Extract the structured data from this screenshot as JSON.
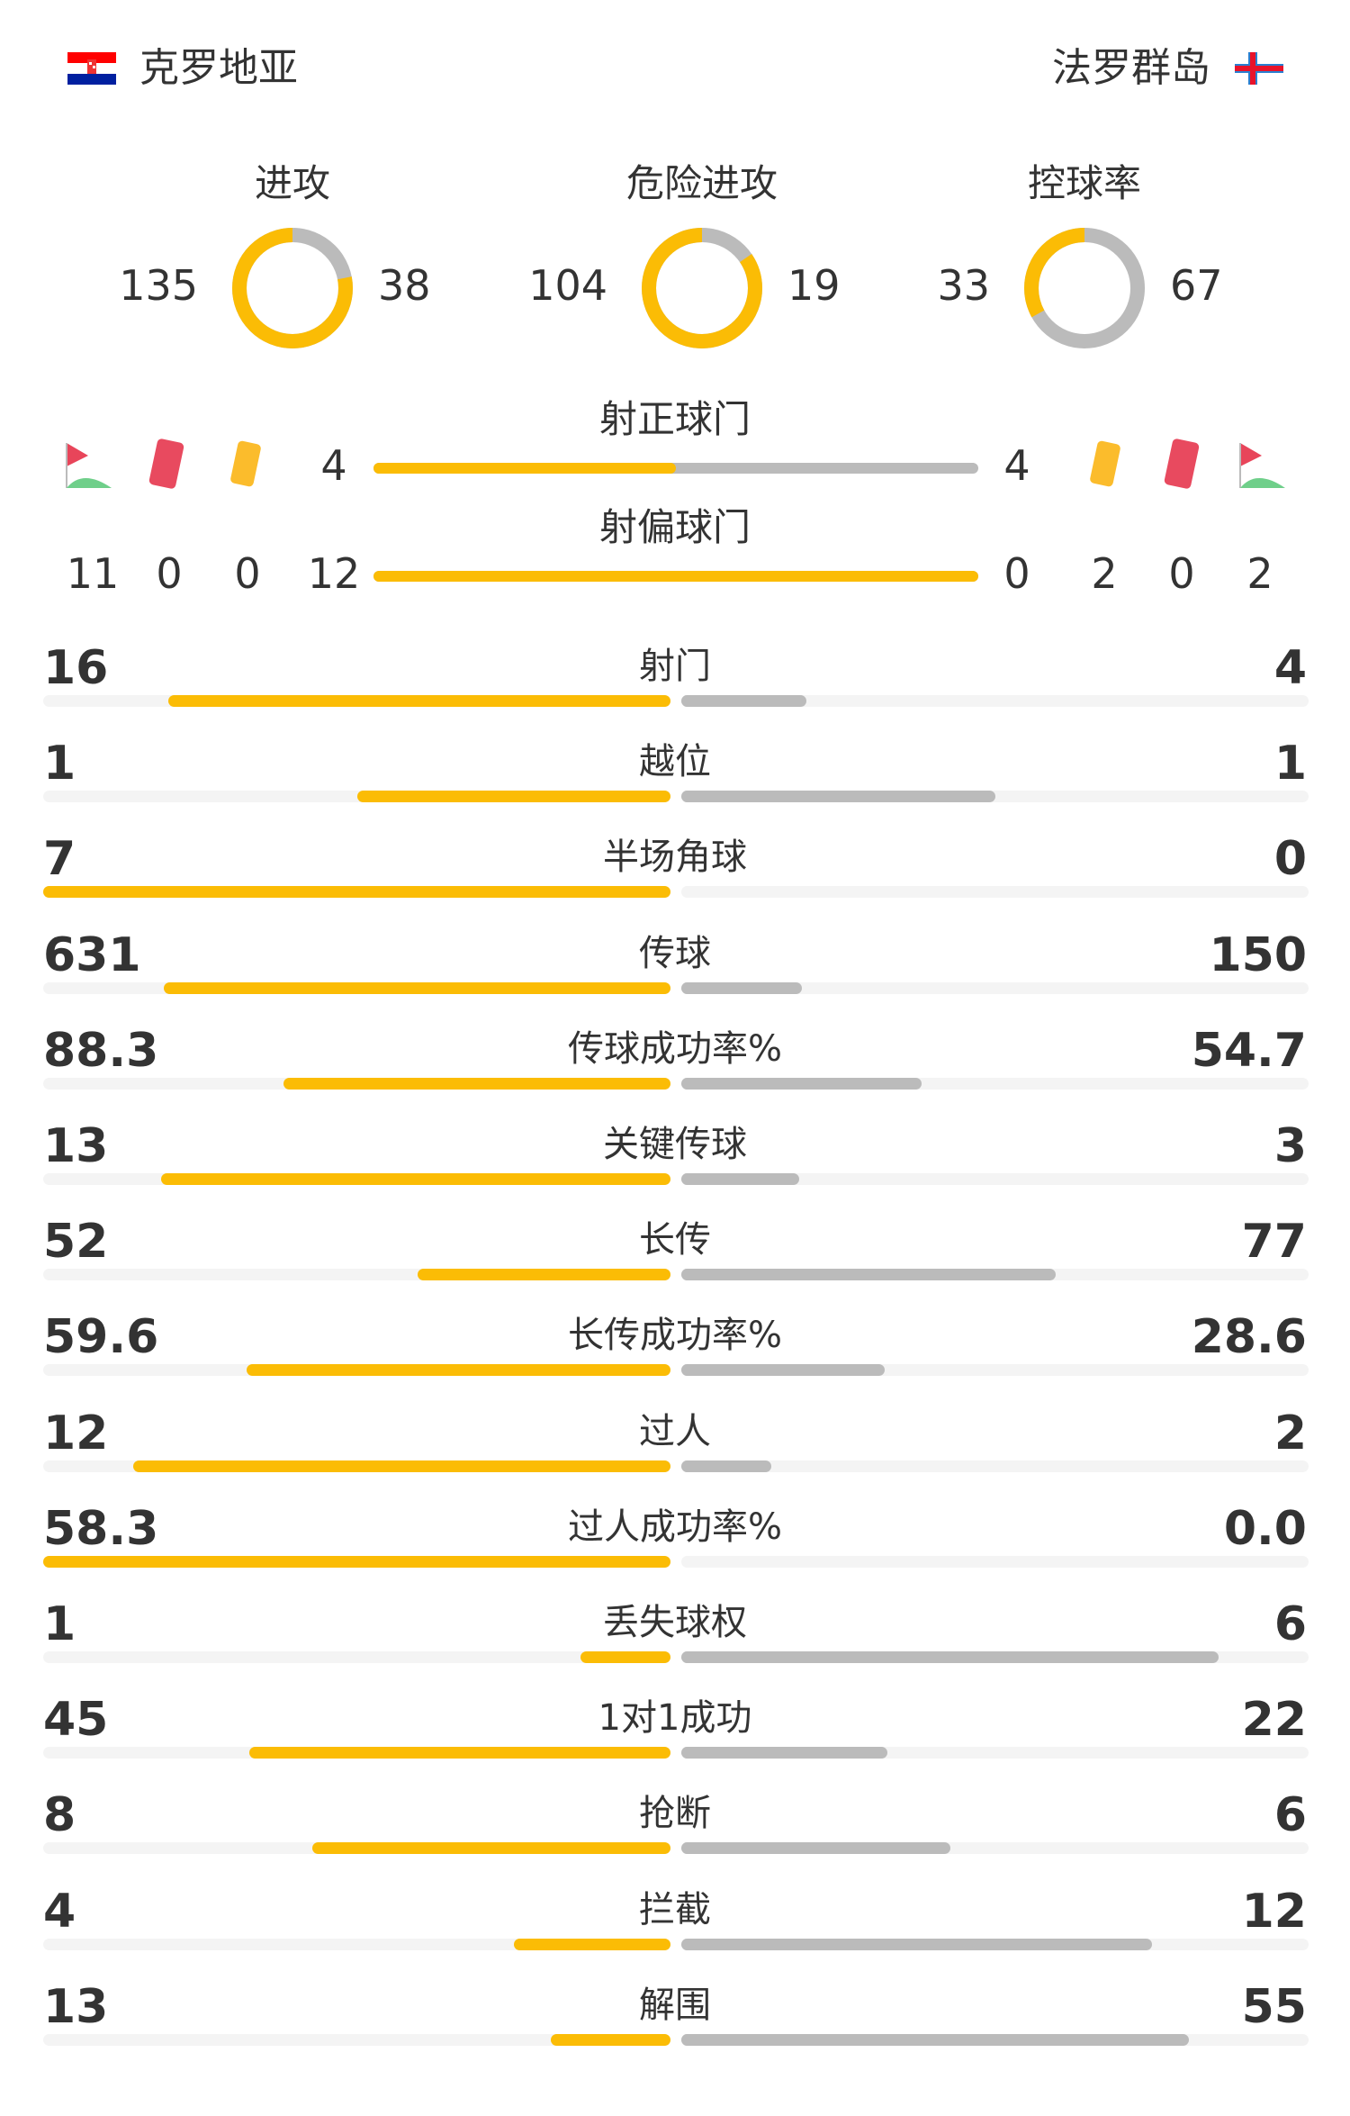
{
  "teams": {
    "home": {
      "name": "克罗地亚",
      "flag": "croatia-flag"
    },
    "away": {
      "name": "法罗群岛",
      "flag": "faroe-islands-flag"
    }
  },
  "colors": {
    "home": "#FBBC05",
    "away": "#BBBBBB",
    "track": "#F4F4F4"
  },
  "donuts": [
    {
      "title": "进攻",
      "home": "135",
      "away": "38"
    },
    {
      "title": "危险进攻",
      "home": "104",
      "away": "19"
    },
    {
      "title": "控球率",
      "home": "33",
      "away": "67"
    }
  ],
  "shots_on_target": {
    "title": "射正球门",
    "home": "4",
    "away": "4"
  },
  "shots_off_target": {
    "title": "射偏球门",
    "home": "12",
    "away": "0"
  },
  "events": {
    "home": {
      "corners": "11",
      "red_cards": "0",
      "yellow_cards": "0"
    },
    "away": {
      "corners": "2",
      "red_cards": "0",
      "yellow_cards": "2"
    }
  },
  "stats": [
    {
      "label": "射门",
      "home": "16",
      "away": "4"
    },
    {
      "label": "越位",
      "home": "1",
      "away": "1"
    },
    {
      "label": "半场角球",
      "home": "7",
      "away": "0"
    },
    {
      "label": "传球",
      "home": "631",
      "away": "150"
    },
    {
      "label": "传球成功率%",
      "home": "88.3",
      "away": "54.7"
    },
    {
      "label": "关键传球",
      "home": "13",
      "away": "3"
    },
    {
      "label": "长传",
      "home": "52",
      "away": "77"
    },
    {
      "label": "长传成功率%",
      "home": "59.6",
      "away": "28.6"
    },
    {
      "label": "过人",
      "home": "12",
      "away": "2"
    },
    {
      "label": "过人成功率%",
      "home": "58.3",
      "away": "0.0"
    },
    {
      "label": "丢失球权",
      "home": "1",
      "away": "6"
    },
    {
      "label": "1对1成功",
      "home": "45",
      "away": "22"
    },
    {
      "label": "抢断",
      "home": "8",
      "away": "6"
    },
    {
      "label": "拦截",
      "home": "4",
      "away": "12"
    },
    {
      "label": "解围",
      "home": "13",
      "away": "55"
    }
  ]
}
